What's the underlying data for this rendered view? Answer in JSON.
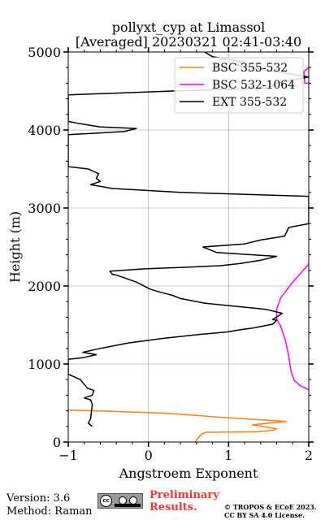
{
  "chart_data": {
    "type": "line",
    "title": "pollyxt_cyp at Limassol",
    "subtitle": "[Averaged] 20230321 02:41-03:40",
    "xlabel": "Angstroem Exponent",
    "ylabel": "Height (m)",
    "xlim": [
      -1,
      2
    ],
    "ylim": [
      0,
      5000
    ],
    "xticks": [
      -1,
      0,
      1,
      2
    ],
    "yticks": [
      0,
      1000,
      2000,
      3000,
      4000,
      5000
    ],
    "xtick_labels": [
      "−1",
      "0",
      "1",
      "2"
    ],
    "ytick_labels": [
      "0",
      "1000",
      "2000",
      "3000",
      "4000",
      "5000"
    ],
    "grid": true,
    "legend_position": "top-right",
    "series": [
      {
        "name": "BSC 355-532",
        "color": "#ff7f0e",
        "points": [
          [
            0.58,
            0
          ],
          [
            0.66,
            100
          ],
          [
            0.72,
            125
          ],
          [
            1.35,
            130
          ],
          [
            1.55,
            150
          ],
          [
            1.6,
            170
          ],
          [
            1.3,
            220
          ],
          [
            1.72,
            265
          ],
          [
            1.0,
            310
          ],
          [
            0.2,
            370
          ],
          [
            -0.5,
            395
          ],
          [
            -1.0,
            410
          ]
        ]
      },
      {
        "name": "BSC 532-1064",
        "color": "#ff00ff",
        "points": [
          [
            2.0,
            670
          ],
          [
            1.9,
            720
          ],
          [
            1.82,
            790
          ],
          [
            1.78,
            900
          ],
          [
            1.75,
            1100
          ],
          [
            1.71,
            1300
          ],
          [
            1.65,
            1480
          ],
          [
            1.6,
            1580
          ],
          [
            1.6,
            1700
          ],
          [
            1.65,
            1850
          ],
          [
            1.8,
            2050
          ],
          [
            2.0,
            2280
          ],
          [
            2.1,
            4600
          ],
          [
            1.95,
            4600
          ],
          [
            1.94,
            4750
          ],
          [
            2.0,
            4800
          ]
        ]
      },
      {
        "name": "EXT 355-532",
        "color": "#000000",
        "points": [
          [
            -0.7,
            200
          ],
          [
            -0.75,
            240
          ],
          [
            -0.72,
            300
          ],
          [
            -0.71,
            400
          ],
          [
            -0.7,
            480
          ],
          [
            -0.72,
            540
          ],
          [
            -0.8,
            565
          ],
          [
            -0.7,
            600
          ],
          [
            -0.68,
            660
          ],
          [
            -0.76,
            690
          ],
          [
            -0.85,
            800
          ],
          [
            -1.0,
            870
          ],
          [
            -1.0,
            1060
          ],
          [
            -0.82,
            1080
          ],
          [
            -0.65,
            1120
          ],
          [
            -0.82,
            1150
          ],
          [
            -0.6,
            1200
          ],
          [
            -0.25,
            1270
          ],
          [
            0.2,
            1330
          ],
          [
            0.65,
            1380
          ],
          [
            0.98,
            1410
          ],
          [
            1.15,
            1440
          ],
          [
            1.3,
            1460
          ],
          [
            1.4,
            1480
          ],
          [
            1.55,
            1510
          ],
          [
            1.6,
            1560
          ],
          [
            1.55,
            1570
          ],
          [
            1.67,
            1650
          ],
          [
            1.47,
            1700
          ],
          [
            0.7,
            1780
          ],
          [
            0.4,
            1840
          ],
          [
            0.3,
            1880
          ],
          [
            0.15,
            1920
          ],
          [
            0.02,
            1960
          ],
          [
            -0.15,
            2050
          ],
          [
            -0.4,
            2140
          ],
          [
            -0.45,
            2150
          ],
          [
            -0.48,
            2190
          ],
          [
            -0.05,
            2220
          ],
          [
            0.45,
            2240
          ],
          [
            0.9,
            2260
          ],
          [
            1.15,
            2290
          ],
          [
            1.4,
            2330
          ],
          [
            1.6,
            2380
          ],
          [
            1.3,
            2400
          ],
          [
            0.85,
            2430
          ],
          [
            0.68,
            2500
          ],
          [
            1.2,
            2540
          ],
          [
            1.4,
            2590
          ],
          [
            1.7,
            2640
          ],
          [
            1.75,
            2750
          ],
          [
            2.0,
            2800
          ],
          [
            2.0,
            3150
          ],
          [
            0.4,
            3200
          ],
          [
            -0.45,
            3250
          ],
          [
            -0.72,
            3300
          ],
          [
            -0.6,
            3340
          ],
          [
            -0.65,
            3380
          ],
          [
            -0.62,
            3440
          ],
          [
            -0.75,
            3500
          ],
          [
            -1.0,
            3530
          ],
          [
            -1.0,
            3940
          ],
          [
            -0.3,
            3980
          ],
          [
            -0.15,
            4020
          ],
          [
            -0.6,
            4040
          ],
          [
            -0.85,
            4080
          ],
          [
            -1.0,
            4110
          ],
          [
            -1.0,
            4450
          ],
          [
            0.3,
            4500
          ],
          [
            1.0,
            4520
          ],
          [
            1.5,
            4540
          ],
          [
            1.6,
            4600
          ],
          [
            1.85,
            4650
          ],
          [
            2.0,
            4680
          ],
          [
            1.1,
            4830
          ],
          [
            1.2,
            4870
          ],
          [
            0.8,
            4940
          ],
          [
            0.7,
            5000
          ]
        ]
      }
    ]
  },
  "footer": {
    "version": "Version: 3.6",
    "method": "Method: Raman",
    "cc_text": "cc",
    "preliminary_line1": "Preliminary",
    "preliminary_line2": "Results.",
    "copyright_line1": "© TROPOS & ECoE 2023.",
    "copyright_line2": "CC BY SA 4.0 License."
  }
}
